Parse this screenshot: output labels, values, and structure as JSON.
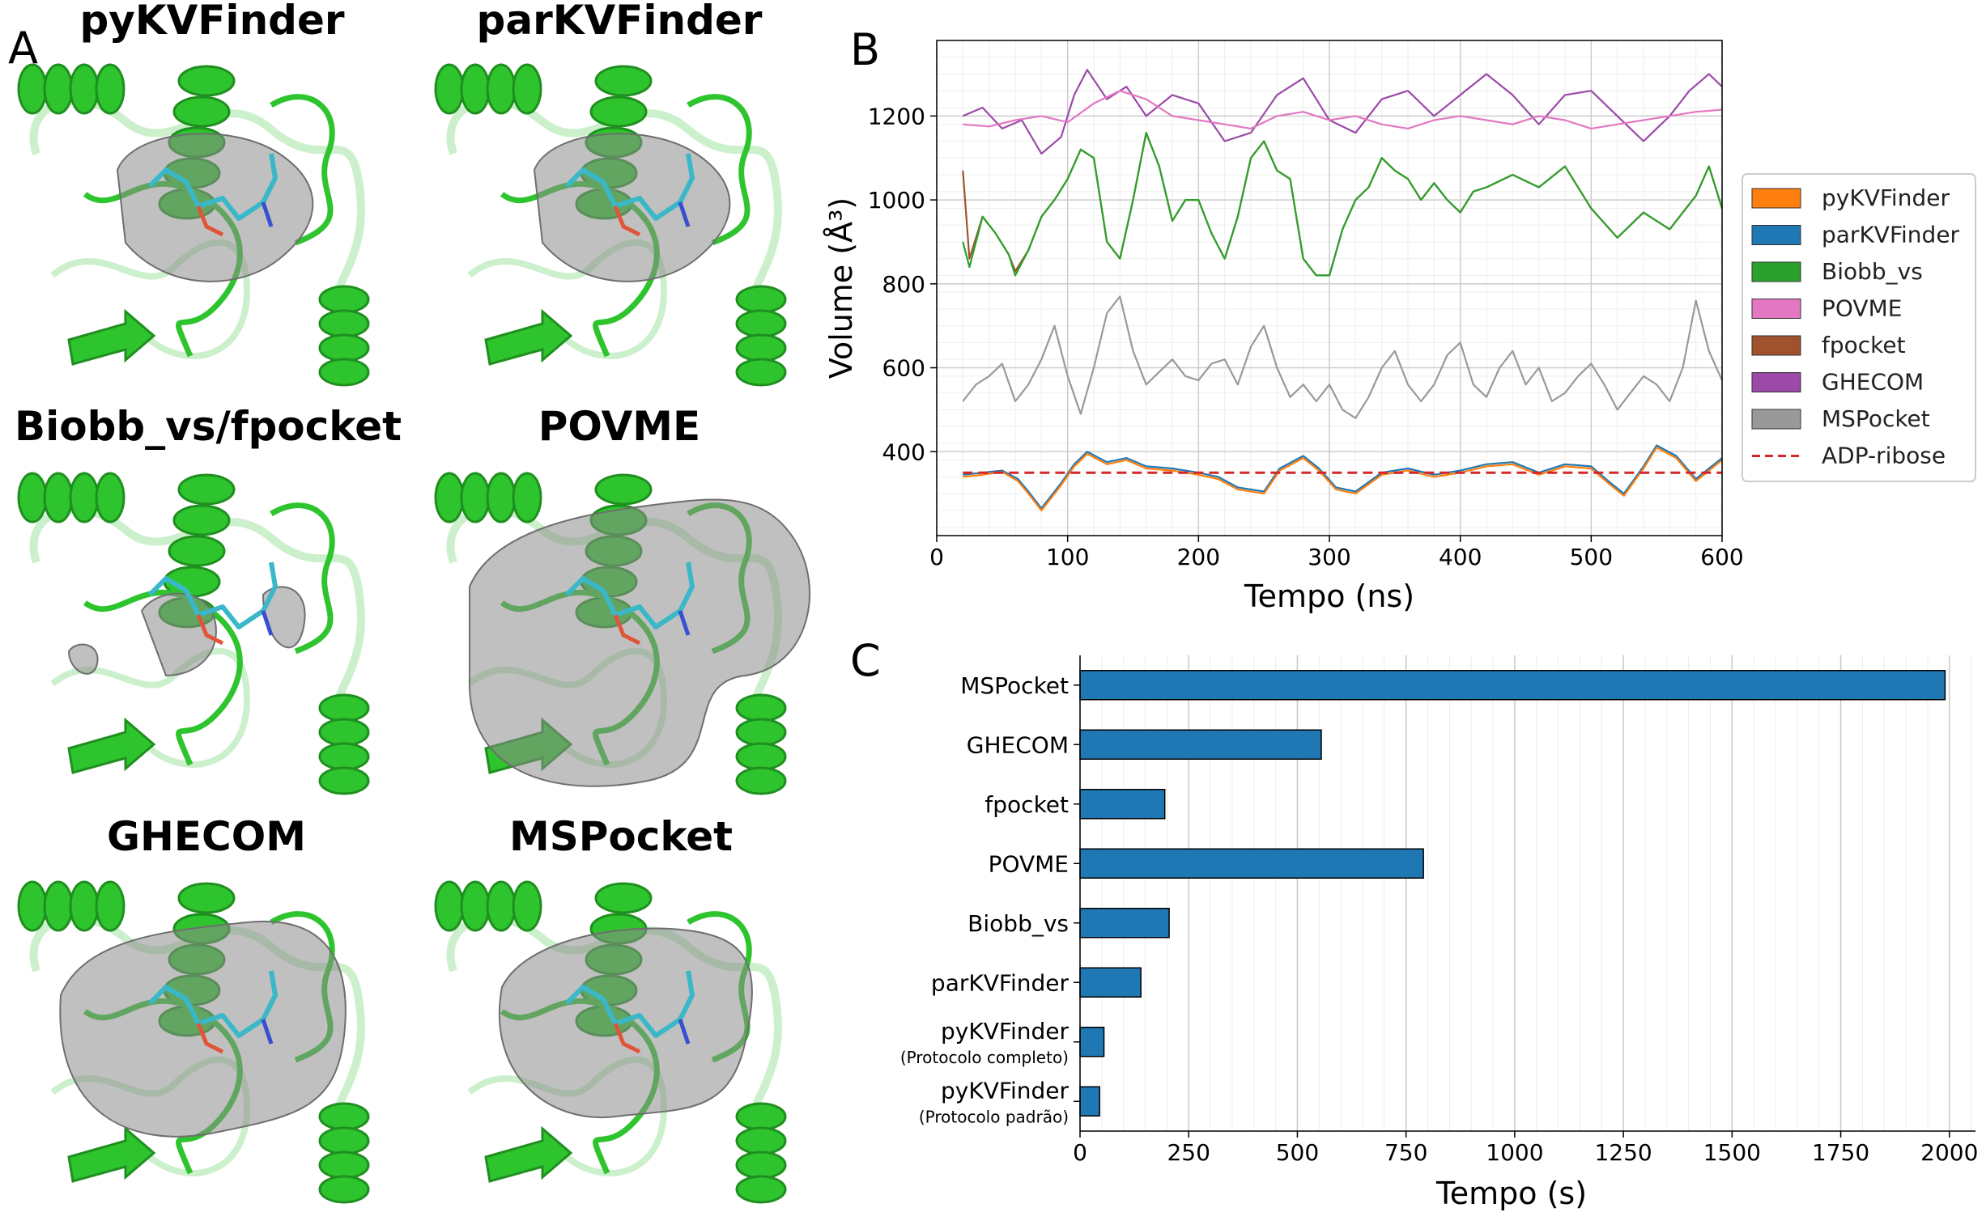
{
  "panel_a": {
    "letter": "A",
    "titles": [
      "pyKVFinder",
      "parKVFinder",
      "Biobb_vs/fpocket",
      "POVME",
      "GHECOM",
      "MSPocket"
    ]
  },
  "chart_data": [
    {
      "panel": "B",
      "type": "line",
      "xlabel": "Tempo (ns)",
      "ylabel": "Volume (Å³)",
      "xlim": [
        0,
        600
      ],
      "ylim": [
        200,
        1380
      ],
      "x_ticks": [
        0,
        100,
        200,
        300,
        400,
        500,
        600
      ],
      "y_ticks": [
        400,
        600,
        800,
        1000,
        1200
      ],
      "grid": true,
      "legend_position": "right",
      "series": [
        {
          "name": "pyKVFinder",
          "color": "#ff7f0e",
          "x": [
            20,
            35,
            50,
            62,
            70,
            80,
            95,
            105,
            115,
            130,
            145,
            160,
            180,
            200,
            215,
            230,
            250,
            262,
            280,
            292,
            305,
            320,
            340,
            360,
            380,
            400,
            420,
            440,
            460,
            480,
            500,
            515,
            525,
            540,
            550,
            565,
            580,
            600
          ],
          "values": [
            340,
            345,
            352,
            330,
            300,
            260,
            320,
            365,
            395,
            370,
            380,
            360,
            355,
            345,
            335,
            310,
            300,
            355,
            385,
            355,
            310,
            300,
            345,
            355,
            340,
            350,
            365,
            370,
            345,
            365,
            360,
            320,
            295,
            360,
            410,
            385,
            330,
            380
          ]
        },
        {
          "name": "parKVFinder",
          "color": "#1f77b4",
          "x": [
            20,
            35,
            50,
            62,
            70,
            80,
            95,
            105,
            115,
            130,
            145,
            160,
            180,
            200,
            215,
            230,
            250,
            262,
            280,
            292,
            305,
            320,
            340,
            360,
            380,
            400,
            420,
            440,
            460,
            480,
            500,
            515,
            525,
            540,
            550,
            565,
            580,
            600
          ],
          "values": [
            345,
            350,
            355,
            335,
            305,
            265,
            325,
            370,
            400,
            375,
            385,
            365,
            360,
            350,
            340,
            315,
            305,
            360,
            390,
            360,
            315,
            305,
            350,
            360,
            345,
            355,
            370,
            375,
            350,
            370,
            365,
            325,
            300,
            365,
            415,
            390,
            335,
            385
          ]
        },
        {
          "name": "Biobb_vs",
          "color": "#2ca02c",
          "x": [
            20,
            25,
            35,
            45,
            55,
            60,
            70,
            80,
            90,
            100,
            110,
            120,
            130,
            140,
            150,
            160,
            170,
            180,
            190,
            200,
            210,
            220,
            230,
            240,
            250,
            260,
            270,
            280,
            290,
            300,
            310,
            320,
            330,
            340,
            350,
            360,
            370,
            380,
            390,
            400,
            410,
            420,
            440,
            460,
            480,
            500,
            520,
            540,
            560,
            580,
            590,
            600
          ],
          "values": [
            900,
            840,
            960,
            920,
            870,
            820,
            880,
            960,
            1000,
            1050,
            1120,
            1100,
            900,
            860,
            1000,
            1160,
            1080,
            950,
            1000,
            1000,
            920,
            860,
            960,
            1100,
            1140,
            1070,
            1050,
            860,
            820,
            820,
            930,
            1000,
            1030,
            1100,
            1070,
            1050,
            1000,
            1040,
            1000,
            970,
            1020,
            1030,
            1060,
            1030,
            1080,
            980,
            910,
            970,
            930,
            1010,
            1080,
            980
          ]
        },
        {
          "name": "POVME",
          "color": "#e377c2",
          "x": [
            20,
            40,
            60,
            80,
            100,
            120,
            140,
            160,
            180,
            200,
            220,
            240,
            260,
            280,
            300,
            320,
            340,
            360,
            380,
            400,
            420,
            440,
            460,
            480,
            500,
            520,
            540,
            560,
            580,
            600
          ],
          "values": [
            1180,
            1175,
            1190,
            1200,
            1185,
            1230,
            1260,
            1240,
            1200,
            1190,
            1180,
            1170,
            1200,
            1210,
            1190,
            1200,
            1180,
            1170,
            1190,
            1200,
            1190,
            1180,
            1200,
            1190,
            1170,
            1180,
            1190,
            1200,
            1210,
            1215
          ]
        },
        {
          "name": "fpocket",
          "color": "#a0522d",
          "x": [
            20,
            25,
            35,
            45,
            55,
            60,
            70,
            80,
            90,
            100,
            110,
            120,
            130,
            140,
            150,
            160,
            170,
            180,
            190,
            200,
            210,
            220,
            230,
            240,
            250,
            260,
            270,
            280,
            290,
            300,
            310,
            320,
            330,
            340,
            350,
            360,
            370,
            380,
            390,
            400,
            410,
            420,
            440,
            460,
            480,
            500,
            520,
            540,
            560,
            580,
            590,
            600
          ],
          "values": [
            1070,
            860,
            960,
            920,
            870,
            830,
            880,
            960,
            1000,
            1050,
            1120,
            1100,
            900,
            860,
            1000,
            1160,
            1080,
            950,
            1000,
            1000,
            920,
            860,
            960,
            1100,
            1140,
            1070,
            1050,
            860,
            820,
            820,
            930,
            1000,
            1030,
            1100,
            1070,
            1050,
            1000,
            1040,
            1000,
            970,
            1020,
            1030,
            1060,
            1030,
            1080,
            980,
            910,
            970,
            930,
            1010,
            1080,
            980
          ]
        },
        {
          "name": "GHECOM",
          "color": "#9b4aa8",
          "x": [
            20,
            35,
            50,
            65,
            80,
            95,
            105,
            115,
            130,
            145,
            160,
            180,
            200,
            220,
            240,
            260,
            280,
            300,
            320,
            340,
            360,
            380,
            400,
            420,
            440,
            460,
            480,
            500,
            520,
            540,
            560,
            575,
            590,
            600
          ],
          "values": [
            1200,
            1220,
            1170,
            1190,
            1110,
            1150,
            1250,
            1310,
            1240,
            1270,
            1200,
            1250,
            1230,
            1140,
            1160,
            1250,
            1290,
            1190,
            1160,
            1240,
            1260,
            1200,
            1250,
            1300,
            1250,
            1180,
            1250,
            1260,
            1200,
            1140,
            1200,
            1260,
            1300,
            1270
          ]
        },
        {
          "name": "MSPocket",
          "color": "#999999",
          "x": [
            20,
            30,
            40,
            50,
            60,
            70,
            80,
            90,
            100,
            110,
            120,
            130,
            140,
            150,
            160,
            170,
            180,
            190,
            200,
            210,
            220,
            230,
            240,
            250,
            260,
            270,
            280,
            290,
            300,
            310,
            320,
            330,
            340,
            350,
            360,
            370,
            380,
            390,
            400,
            410,
            420,
            430,
            440,
            450,
            460,
            470,
            480,
            490,
            500,
            510,
            520,
            530,
            540,
            550,
            560,
            570,
            580,
            590,
            600
          ],
          "values": [
            520,
            560,
            580,
            610,
            520,
            560,
            620,
            700,
            580,
            490,
            600,
            730,
            770,
            640,
            560,
            590,
            620,
            580,
            570,
            610,
            620,
            560,
            650,
            700,
            600,
            530,
            560,
            520,
            560,
            500,
            480,
            530,
            600,
            640,
            560,
            520,
            560,
            630,
            660,
            560,
            530,
            600,
            640,
            560,
            600,
            520,
            540,
            580,
            610,
            560,
            500,
            540,
            580,
            560,
            520,
            600,
            760,
            640,
            570
          ]
        },
        {
          "name": "MSPocket",
          "color": "#999999",
          "x": [
            20,
            30,
            40,
            50,
            60,
            70,
            80,
            90,
            100,
            110,
            120,
            130,
            140,
            150,
            160,
            170,
            180,
            190,
            200,
            210,
            220,
            230,
            240,
            250,
            260,
            270,
            280,
            290,
            300,
            310,
            320,
            330,
            340,
            350,
            360,
            370,
            380,
            390,
            400,
            410,
            420,
            430,
            440,
            450,
            460,
            470,
            480,
            490,
            500,
            510,
            520,
            530,
            540,
            550,
            560,
            570,
            580,
            590,
            600
          ],
          "values": [
            520,
            560,
            580,
            610,
            520,
            560,
            620,
            700,
            580,
            490,
            600,
            730,
            770,
            640,
            560,
            590,
            620,
            580,
            570,
            610,
            620,
            560,
            650,
            700,
            600,
            530,
            560,
            520,
            560,
            500,
            480,
            530,
            600,
            640,
            560,
            520,
            560,
            630,
            660,
            560,
            530,
            600,
            640,
            560,
            600,
            520,
            540,
            580,
            610,
            560,
            500,
            540,
            580,
            560,
            520,
            600,
            760,
            640,
            570
          ]
        },
        {
          "name": "ADP-ribose",
          "color": "#d62728",
          "dashed": true,
          "x": [
            20,
            600
          ],
          "values": [
            350,
            350
          ]
        }
      ],
      "legend_labels": [
        "pyKVFinder",
        "parKVFinder",
        "Biobb_vs",
        "POVME",
        "fpocket",
        "GHECOM",
        "MSPocket",
        "ADP-ribose"
      ]
    },
    {
      "panel": "C",
      "type": "bar",
      "orientation": "horizontal",
      "xlabel": "Tempo (s)",
      "xlim": [
        0,
        2060
      ],
      "x_ticks": [
        0,
        250,
        500,
        750,
        1000,
        1250,
        1500,
        1750,
        2000
      ],
      "grid": true,
      "bar_color": "#1f77b4",
      "categories": [
        {
          "label": "MSPocket",
          "sublabel": ""
        },
        {
          "label": "GHECOM",
          "sublabel": ""
        },
        {
          "label": "fpocket",
          "sublabel": ""
        },
        {
          "label": "POVME",
          "sublabel": ""
        },
        {
          "label": "Biobb_vs",
          "sublabel": ""
        },
        {
          "label": "parKVFinder",
          "sublabel": ""
        },
        {
          "label": "pyKVFinder",
          "sublabel": "(Protocolo completo)"
        },
        {
          "label": "pyKVFinder",
          "sublabel": "(Protocolo padrão)"
        }
      ],
      "values": [
        1990,
        555,
        195,
        790,
        205,
        140,
        55,
        45
      ]
    }
  ],
  "panel_b": {
    "letter": "B"
  },
  "panel_c": {
    "letter": "C"
  },
  "colors": {
    "protein_green": "#2ec42e",
    "protein_dark": "#1f8f1f",
    "cavity_gray": "#8c8c8c",
    "ligand_cyan": "#3ab8c8"
  }
}
